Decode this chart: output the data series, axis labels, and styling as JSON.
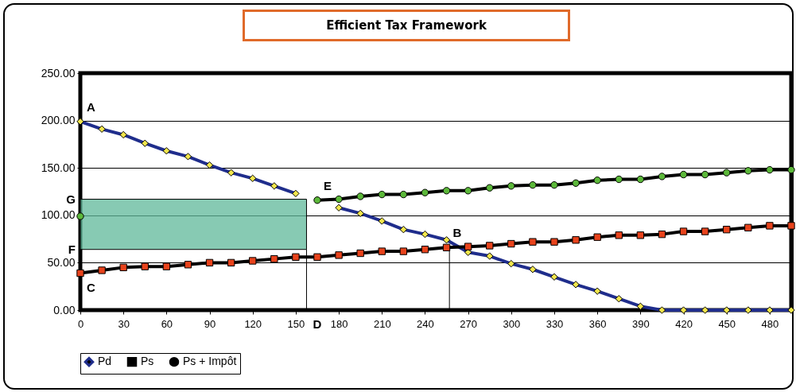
{
  "chart_data": {
    "type": "line",
    "title": "Efficient Tax Framework",
    "x": [
      0,
      15,
      30,
      45,
      60,
      75,
      90,
      105,
      120,
      135,
      150,
      165,
      180,
      195,
      210,
      225,
      240,
      255,
      270,
      285,
      300,
      315,
      330,
      345,
      360,
      375,
      390,
      405,
      420,
      435,
      450,
      465,
      480,
      495
    ],
    "series": [
      {
        "name": "Pd",
        "color": "#1f2d8c",
        "marker": "diamond",
        "colors": [
          "#f2e64d",
          "#f2e64d",
          "#f2e64d",
          "#f2e64d",
          "#f2e64d",
          "#f2e64d",
          "#f2e64d",
          "#f2e64d",
          "#f2e64d",
          "#f2e64d",
          "#f2e64d",
          "#f2e64d",
          "#f2e64d",
          "#f2e64d",
          "#f2e64d",
          "#f2e64d",
          "#f2e64d",
          "#f2e64d",
          "#f2e64d",
          "#f2e64d",
          "#f2e64d",
          "#f2e64d",
          "#f2e64d",
          "#f2e64d",
          "#f2e64d",
          "#f2e64d",
          "#f2e64d",
          "#f2e64d",
          "#f2e64d",
          "#f2e64d",
          "#f2e64d",
          "#f2e64d",
          "#f2e64d",
          "#f2e64d"
        ],
        "values": [
          199,
          191,
          185,
          176,
          168,
          162,
          153,
          145,
          139,
          131,
          123,
          null,
          108,
          102,
          94,
          85,
          80,
          74,
          61,
          57,
          49,
          43,
          35,
          27,
          20,
          12,
          4,
          0,
          0,
          0,
          0,
          0,
          0,
          0
        ]
      },
      {
        "name": "Ps",
        "color": "#000000",
        "marker": "square",
        "colors": [
          "#e8431c",
          "#e8431c",
          "#e8431c",
          "#e8431c",
          "#e8431c",
          "#e8431c",
          "#e8431c",
          "#e8431c",
          "#e8431c",
          "#e8431c",
          "#e8431c",
          "#e8431c",
          "#e8431c",
          "#e8431c",
          "#e8431c",
          "#e8431c",
          "#e8431c",
          "#e8431c",
          "#e8431c",
          "#e8431c",
          "#e8431c",
          "#e8431c",
          "#e8431c",
          "#e8431c",
          "#e8431c",
          "#e8431c",
          "#e8431c",
          "#e8431c",
          "#e8431c",
          "#e8431c",
          "#e8431c",
          "#e8431c",
          "#e8431c",
          "#e8431c"
        ],
        "values": [
          39,
          42,
          45,
          46,
          46,
          48,
          50,
          50,
          52,
          54,
          56,
          56,
          58,
          60,
          62,
          62,
          64,
          66,
          67,
          68,
          70,
          72,
          72,
          74,
          77,
          79,
          79,
          80,
          83,
          83,
          85,
          87,
          89,
          89
        ]
      },
      {
        "name": "Ps + Impôt",
        "color": "#000000",
        "marker": "circle",
        "colors": [
          "#5cb83a",
          "#5cb83a",
          "#5cb83a",
          "#5cb83a",
          "#5cb83a",
          "#5cb83a",
          "#5cb83a",
          "#5cb83a",
          "#5cb83a",
          "#5cb83a",
          "#5cb83a",
          "#5cb83a",
          "#5cb83a",
          "#5cb83a",
          "#5cb83a",
          "#5cb83a",
          "#5cb83a",
          "#5cb83a",
          "#5cb83a",
          "#5cb83a",
          "#5cb83a",
          "#5cb83a",
          "#5cb83a",
          "#5cb83a",
          "#5cb83a",
          "#5cb83a",
          "#5cb83a",
          "#5cb83a",
          "#5cb83a",
          "#5cb83a",
          "#5cb83a",
          "#5cb83a",
          "#5cb83a",
          "#5cb83a"
        ],
        "values": [
          99,
          null,
          null,
          null,
          null,
          null,
          null,
          null,
          null,
          null,
          null,
          116,
          117,
          120,
          122,
          122,
          124,
          126,
          126,
          129,
          131,
          132,
          132,
          134,
          137,
          138,
          138,
          141,
          143,
          143,
          145,
          147,
          148,
          148
        ]
      }
    ],
    "xlim": [
      0,
      495
    ],
    "xticks": [
      0,
      30,
      60,
      90,
      120,
      150,
      180,
      210,
      240,
      270,
      300,
      330,
      360,
      390,
      420,
      450,
      480
    ],
    "ylim": [
      0,
      250
    ],
    "yticks": [
      {
        "value": 0,
        "label": "0.00"
      },
      {
        "value": 50,
        "label": "50.00"
      },
      {
        "value": 100,
        "label": "100.00"
      },
      {
        "value": 150,
        "label": "150.00"
      },
      {
        "value": 200,
        "label": "200.00"
      },
      {
        "value": 250,
        "label": "250.00"
      }
    ],
    "grid": "y",
    "legend": "bottom",
    "bands": [
      {
        "axis": "y",
        "from": 64,
        "to": 117,
        "color": "#5fb89a"
      }
    ],
    "ref_lines": [
      {
        "axis": "x",
        "value": 157.5
      },
      {
        "axis": "x",
        "value": 257
      }
    ],
    "annotations": [
      {
        "text": "A",
        "x": 0,
        "y": 199
      },
      {
        "text": "B",
        "x": 255,
        "y": 66
      },
      {
        "text": "C",
        "x": 0,
        "y": 39
      },
      {
        "text": "D",
        "x": 157.5,
        "y": 0
      },
      {
        "text": "E",
        "x": 165,
        "y": 116
      },
      {
        "text": "F",
        "x": 0,
        "y": 64
      },
      {
        "text": "G",
        "x": 0,
        "y": 117
      }
    ]
  }
}
